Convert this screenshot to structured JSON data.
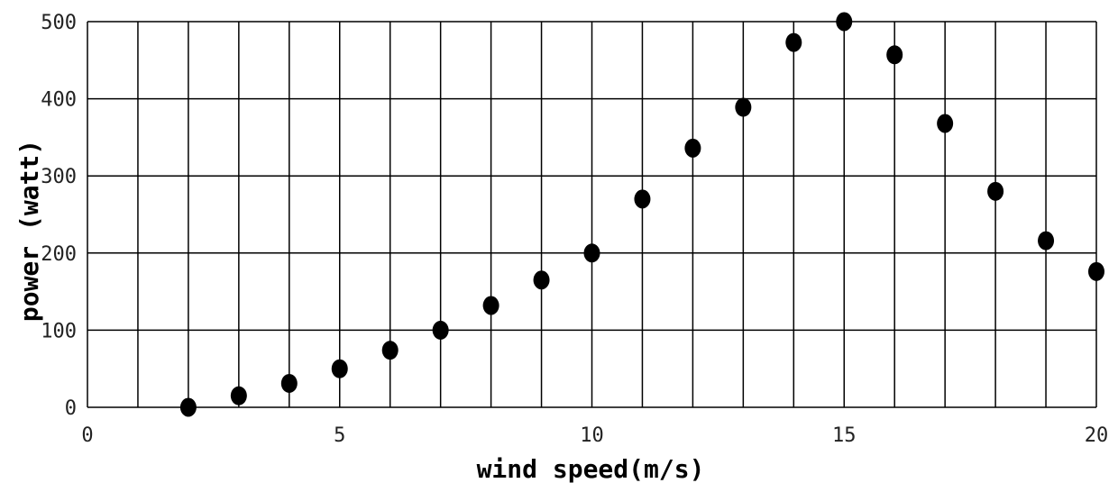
{
  "chart_data": {
    "type": "scatter",
    "title": "",
    "xlabel": "wind speed(m/s)",
    "ylabel": "power (watt)",
    "xlim": [
      0,
      20
    ],
    "ylim": [
      0,
      500
    ],
    "x_ticks": [
      0,
      5,
      10,
      15,
      20
    ],
    "y_ticks": [
      0,
      100,
      200,
      300,
      400,
      500
    ],
    "x_grid_step": 1,
    "grid": true,
    "legend": "none",
    "marker_color": "#000000",
    "grid_color": "#000000",
    "series": [
      {
        "x": [
          2,
          3,
          4,
          5,
          6,
          7,
          8,
          9,
          10,
          11,
          12,
          13,
          14,
          15,
          16,
          17,
          18,
          19,
          20
        ],
        "y": [
          0,
          15,
          31,
          50,
          74,
          100,
          132,
          165,
          200,
          270,
          336,
          389,
          473,
          500,
          457,
          368,
          280,
          216,
          176
        ]
      }
    ]
  }
}
